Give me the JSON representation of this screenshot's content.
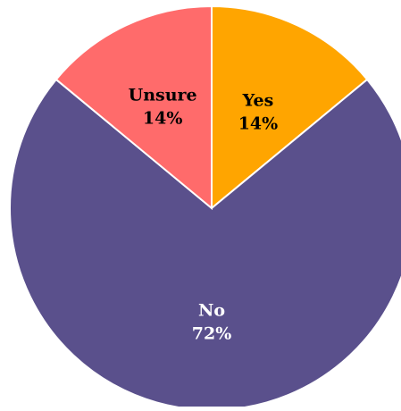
{
  "chart_data": {
    "type": "pie",
    "start": "top",
    "direction": "clockwise",
    "slices": [
      {
        "label": "Yes",
        "value": 14,
        "value_label": "14%",
        "color": "#FFA500",
        "label_color": "#000000"
      },
      {
        "label": "No",
        "value": 72,
        "value_label": "72%",
        "color": "#5A508C",
        "label_color": "#FFFFFF"
      },
      {
        "label": "Unsure",
        "value": 14,
        "value_label": "14%",
        "color": "#FF6B6B",
        "label_color": "#000000"
      }
    ],
    "slice_border_color": "#FFFFFF"
  }
}
